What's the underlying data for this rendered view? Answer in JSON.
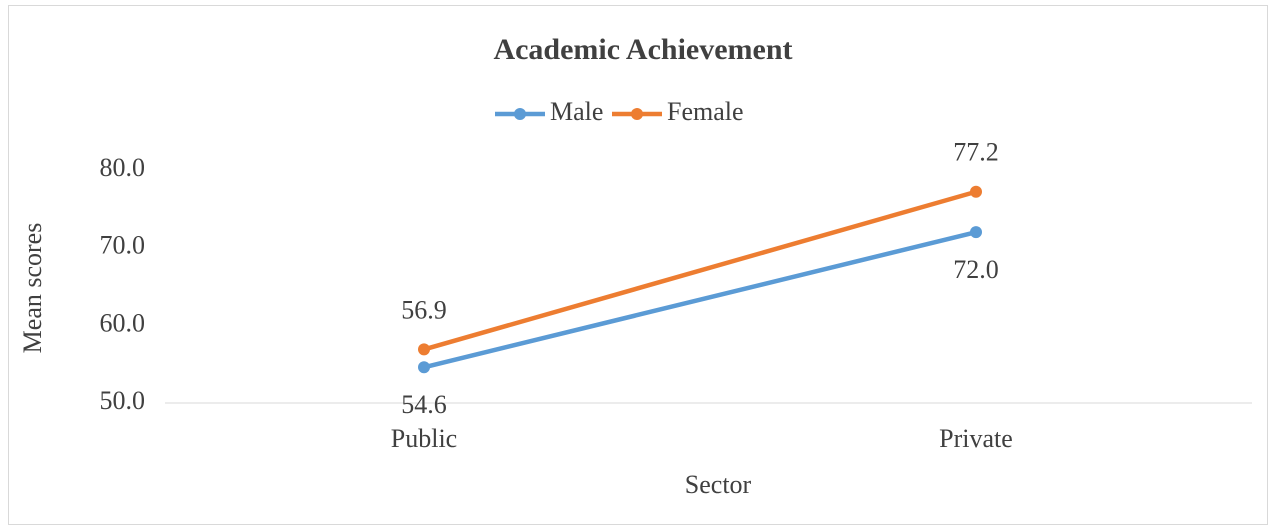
{
  "chart_data": {
    "type": "line",
    "title": "Academic Achievement",
    "xlabel": "Sector",
    "ylabel": "Mean scores",
    "categories": [
      "Public",
      "Private"
    ],
    "series": [
      {
        "name": "Male",
        "color": "#5b9bd5",
        "values": [
          54.6,
          72.0
        ],
        "value_labels": [
          "54.6",
          "72.0"
        ]
      },
      {
        "name": "Female",
        "color": "#ed7d31",
        "values": [
          56.9,
          77.2
        ]
      }
    ],
    "ylim": [
      50,
      80
    ],
    "yticks": [
      {
        "value": 50,
        "label": "50.0"
      },
      {
        "value": 60,
        "label": "60.0"
      },
      {
        "value": 70,
        "label": "70.0"
      },
      {
        "value": 80,
        "label": "80.0"
      }
    ],
    "grid": false,
    "legend": "top"
  }
}
